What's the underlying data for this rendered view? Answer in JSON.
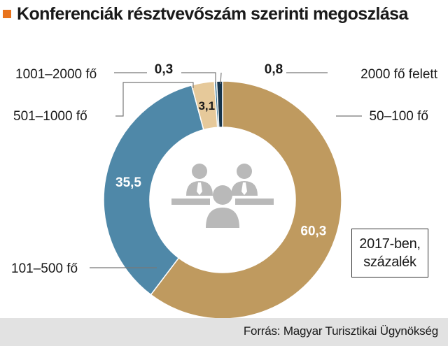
{
  "title": "Konferenciák résztvevőszám szerinti megoszlása",
  "note": {
    "line1": "2017-ben,",
    "line2": "százalék"
  },
  "source": "Forrás: Magyar Turisztikai Ügynökség",
  "colors": {
    "accent": "#e8731c",
    "slice_50_100": "#bf9a5f",
    "slice_101_500": "#4f88a8",
    "slice_501_1000": "#e6c99a",
    "slice_1001_2000": "#2f6f8f",
    "slice_2000_plus": "#17344a",
    "icon": "#b9b9b9",
    "leader": "#777777"
  },
  "chart_data": {
    "type": "pie",
    "variant": "donut",
    "order": "clockwise from top",
    "slices": [
      {
        "label": "50–100 fő",
        "value": 60.3,
        "value_label": "60,3"
      },
      {
        "label": "101–500 fő",
        "value": 35.5,
        "value_label": "35,5"
      },
      {
        "label": "501–1000 fő",
        "value": 3.1,
        "value_label": "3,1"
      },
      {
        "label": "1001–2000 fő",
        "value": 0.3,
        "value_label": "0,3"
      },
      {
        "label": "2000 fő felett",
        "value": 0.8,
        "value_label": "0,8"
      }
    ]
  }
}
